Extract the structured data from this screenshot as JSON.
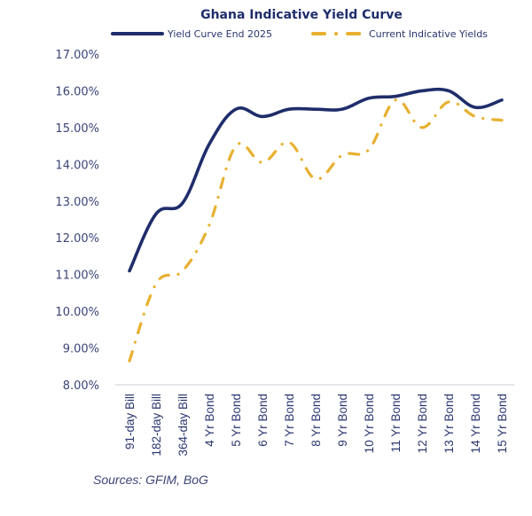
{
  "chart_data": {
    "type": "line",
    "title": "Ghana Indicative Yield Curve",
    "xlabel": "",
    "ylabel": "",
    "ylim": [
      8,
      17
    ],
    "y_ticks": [
      "17.00%",
      "16.00%",
      "15.00%",
      "14.00%",
      "13.00%",
      "12.00%",
      "11.00%",
      "10.00%",
      "9.00%",
      "8.00%"
    ],
    "y_tick_values": [
      17,
      16,
      15,
      14,
      13,
      12,
      11,
      10,
      9,
      8
    ],
    "grid": false,
    "legend_position": "top",
    "categories": [
      "91-day Bill",
      "182-day Bill",
      "364-day Bill",
      "4 Yr Bond",
      "5 Yr Bond",
      "6 Yr Bond",
      "7 Yr Bond",
      "8 Yr Bond",
      "9 Yr Bond",
      "10 Yr Bond",
      "11 Yr Bond",
      "12 Yr Bond",
      "13 Yr Bond",
      "14 Yr Bond",
      "15 Yr Bond"
    ],
    "series": [
      {
        "name": "Yield Curve End 2025",
        "color": "#1f2d6b",
        "style": "solid",
        "values": [
          11.1,
          12.65,
          12.95,
          14.55,
          15.5,
          15.3,
          15.5,
          15.5,
          15.5,
          15.8,
          15.85,
          16.0,
          16.0,
          15.55,
          15.75
        ]
      },
      {
        "name": "Current Indicative Yields",
        "color": "#e8b030",
        "style": "dash-dot",
        "values": [
          8.65,
          10.75,
          11.1,
          12.35,
          14.5,
          14.05,
          14.6,
          13.6,
          14.25,
          14.4,
          15.75,
          15.0,
          15.7,
          15.3,
          15.2
        ]
      }
    ],
    "source": "Sources: GFIM, BoG"
  }
}
